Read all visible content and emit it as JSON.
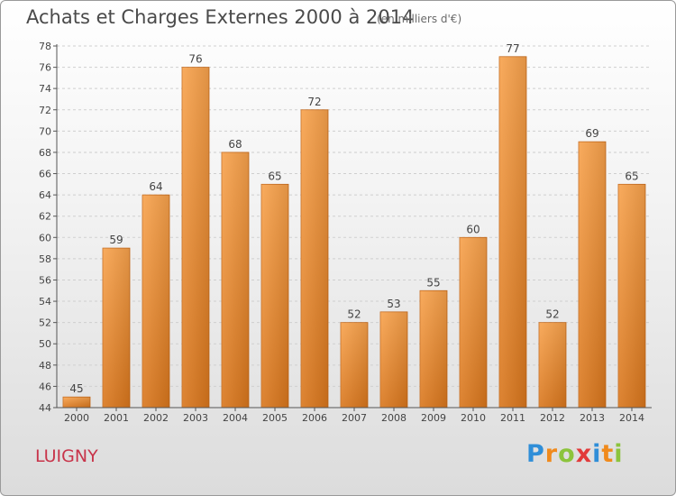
{
  "header": {
    "title": "Achats et Charges Externes 2000 à 2014",
    "subtitle": "(en milliers d'€)"
  },
  "footer": {
    "town": "LUIGNY",
    "logo": {
      "letters": [
        "P",
        "r",
        "o",
        "x",
        "i",
        "t",
        "i"
      ],
      "colors": [
        "#2f8ed8",
        "#f08a1c",
        "#8cc43c",
        "#e23a3a",
        "#2f8ed8",
        "#f08a1c",
        "#8cc43c"
      ]
    }
  },
  "chart_data": {
    "type": "bar",
    "categories": [
      "2000",
      "2001",
      "2002",
      "2003",
      "2004",
      "2005",
      "2006",
      "2007",
      "2008",
      "2009",
      "2010",
      "2011",
      "2012",
      "2013",
      "2014"
    ],
    "values": [
      45,
      59,
      64,
      76,
      68,
      65,
      72,
      52,
      53,
      55,
      60,
      77,
      52,
      69,
      65
    ],
    "data_labels": [
      "45",
      "59",
      "64",
      "76",
      "68",
      "65",
      "72",
      "52",
      "53",
      "55",
      "60",
      "77",
      "52",
      "69",
      "65"
    ],
    "ylim": [
      44,
      78
    ],
    "yticks": [
      "44",
      "46",
      "48",
      "50",
      "52",
      "54",
      "56",
      "58",
      "60",
      "62",
      "64",
      "66",
      "68",
      "70",
      "72",
      "74",
      "76",
      "78"
    ],
    "grid": true,
    "bar_color": "#f0902c"
  }
}
